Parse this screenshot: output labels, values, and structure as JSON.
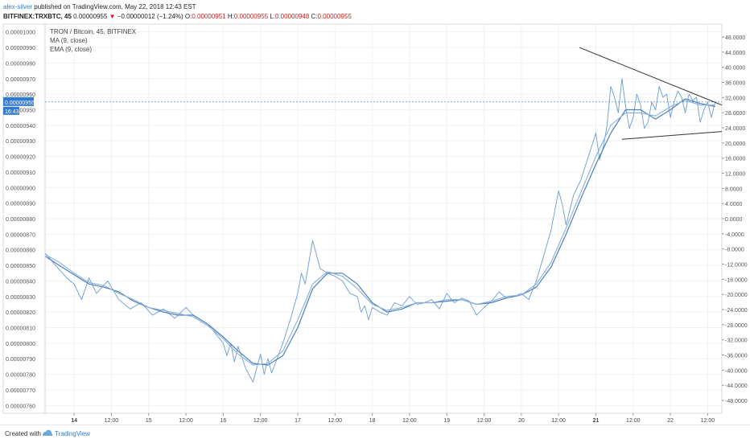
{
  "header": {
    "author": "alex-silver",
    "published_text": "published on TradingView.com, May 22, 2018 12:43 EST",
    "symbol": "BITFINEX:TRXBTC, 45",
    "last": "0.00000955",
    "change_arrow": "▼",
    "change": "−0.00000012 (−1.24%)",
    "o_label": "O:",
    "o_value": "0.00000951",
    "h_label": "H:",
    "h_value": "0.00000955",
    "l_label": "L:",
    "l_value": "0.00000948",
    "c_label": "C:",
    "c_value": "0.00000955"
  },
  "legend": {
    "title": "TRON / Bitcoin, 45, BITFINEX",
    "ma": "MA (9, close)",
    "ema": "EMA (9, close)"
  },
  "price_tag": {
    "value": "0.00000955",
    "time": "16:43"
  },
  "footer": {
    "created_with": "Created with",
    "brand": "TradingView"
  },
  "colors": {
    "price": "#6b9bd1",
    "ma": "#4c7fb8",
    "ema": "#87b0dc",
    "trendline": "#333333",
    "tag": "#2e7bcf",
    "grid": "#eef1f6"
  },
  "chart_data": {
    "type": "line",
    "left_axis": {
      "ylim": [
        7.55e-06,
        1.005e-05
      ],
      "ticks": [
        "0.00001000",
        "0.00000990",
        "0.00000980",
        "0.00000970",
        "0.00000960",
        "0.00000950",
        "0.00000940",
        "0.00000930",
        "0.00000920",
        "0.00000910",
        "0.00000900",
        "0.00000890",
        "0.00000880",
        "0.00000870",
        "0.00000860",
        "0.00000850",
        "0.00000840",
        "0.00000830",
        "0.00000820",
        "0.00000810",
        "0.00000800",
        "0.00000790",
        "0.00000780",
        "0.00000770",
        "0.00000760"
      ]
    },
    "right_axis": {
      "ylim": [
        -51.4,
        51.4
      ],
      "ticks": [
        "48.0000",
        "44.0000",
        "40.0000",
        "36.0000",
        "32.0000",
        "28.0000",
        "24.0000",
        "20.0000",
        "16.0000",
        "12.0000",
        "8.0000",
        "4.0000",
        "0.0000",
        "-4.0000",
        "-8.0000",
        "-12.0000",
        "-16.0000",
        "-20.0000",
        "-24.0000",
        "-28.0000",
        "-32.0000",
        "-36.0000",
        "-40.0000",
        "-44.0000",
        "-48.0000"
      ]
    },
    "xlim": [
      13.61,
      22.69
    ],
    "x_ticks": [
      {
        "x": 14,
        "label": "14",
        "bold": true
      },
      {
        "x": 14.5,
        "label": "12:00",
        "bold": false
      },
      {
        "x": 15,
        "label": "15",
        "bold": false
      },
      {
        "x": 15.5,
        "label": "12:00",
        "bold": false
      },
      {
        "x": 16,
        "label": "16",
        "bold": false
      },
      {
        "x": 16.5,
        "label": "12:00",
        "bold": false
      },
      {
        "x": 17,
        "label": "17",
        "bold": false
      },
      {
        "x": 17.5,
        "label": "12:00",
        "bold": false
      },
      {
        "x": 18,
        "label": "18",
        "bold": false
      },
      {
        "x": 18.5,
        "label": "12:00",
        "bold": false
      },
      {
        "x": 19,
        "label": "19",
        "bold": false
      },
      {
        "x": 19.5,
        "label": "12:00",
        "bold": false
      },
      {
        "x": 20,
        "label": "20",
        "bold": false
      },
      {
        "x": 20.5,
        "label": "12:00",
        "bold": false
      },
      {
        "x": 21,
        "label": "21",
        "bold": true
      },
      {
        "x": 21.5,
        "label": "12:00",
        "bold": false
      },
      {
        "x": 22,
        "label": "22",
        "bold": false
      },
      {
        "x": 22.5,
        "label": "12:00",
        "bold": false
      }
    ],
    "current_price": 9.55e-06,
    "series": [
      {
        "name": "TRXBTC",
        "x": [
          13.61,
          13.75,
          13.9,
          14.0,
          14.1,
          14.2,
          14.3,
          14.45,
          14.6,
          14.75,
          14.9,
          15.05,
          15.2,
          15.35,
          15.5,
          15.6,
          15.7,
          15.8,
          15.9,
          16.0,
          16.05,
          16.1,
          16.15,
          16.2,
          16.3,
          16.4,
          16.5,
          16.55,
          16.6,
          16.65,
          16.7,
          16.8,
          16.9,
          17.0,
          17.05,
          17.1,
          17.2,
          17.3,
          17.4,
          17.5,
          17.6,
          17.7,
          17.8,
          17.85,
          17.9,
          17.95,
          18.0,
          18.1,
          18.2,
          18.3,
          18.4,
          18.5,
          18.6,
          18.7,
          18.8,
          18.9,
          19.0,
          19.1,
          19.2,
          19.3,
          19.4,
          19.5,
          19.6,
          19.7,
          19.8,
          19.9,
          20.0,
          20.1,
          20.2,
          20.3,
          20.4,
          20.5,
          20.55,
          20.6,
          20.7,
          20.8,
          20.9,
          21.0,
          21.05,
          21.1,
          21.15,
          21.2,
          21.25,
          21.3,
          21.35,
          21.4,
          21.45,
          21.5,
          21.55,
          21.6,
          21.65,
          21.7,
          21.75,
          21.8,
          21.85,
          21.9,
          21.95,
          22.0,
          22.05,
          22.1,
          22.15,
          22.2,
          22.25,
          22.3,
          22.35,
          22.4,
          22.45,
          22.5,
          22.55,
          22.6
        ],
        "y": [
          8.58e-06,
          8.5e-06,
          8.42e-06,
          8.38e-06,
          8.28e-06,
          8.42e-06,
          8.32e-06,
          8.4e-06,
          8.28e-06,
          8.22e-06,
          8.26e-06,
          8.18e-06,
          8.22e-06,
          8.16e-06,
          8.23e-06,
          8.18e-06,
          8.15e-06,
          8.12e-06,
          8.06e-06,
          8e-06,
          7.92e-06,
          8e-06,
          7.88e-06,
          7.98e-06,
          7.84e-06,
          7.75e-06,
          7.93e-06,
          7.8e-06,
          7.9e-06,
          7.81e-06,
          7.87e-06,
          8e-06,
          8.15e-06,
          8.32e-06,
          8.45e-06,
          8.38e-06,
          8.66e-06,
          8.48e-06,
          8.45e-06,
          8.43e-06,
          8.4e-06,
          8.32e-06,
          8.3e-06,
          8.2e-06,
          8.24e-06,
          8.15e-06,
          8.23e-06,
          8.2e-06,
          8.18e-06,
          8.26e-06,
          8.24e-06,
          8.3e-06,
          8.25e-06,
          8.26e-06,
          8.28e-06,
          8.22e-06,
          8.32e-06,
          8.26e-06,
          8.29e-06,
          8.27e-06,
          8.18e-06,
          8.23e-06,
          8.27e-06,
          8.33e-06,
          8.29e-06,
          8.3e-06,
          8.32e-06,
          8.28e-06,
          8.4e-06,
          8.56e-06,
          8.73e-06,
          8.98e-06,
          8.89e-06,
          8.76e-06,
          8.95e-06,
          9.05e-06,
          9.2e-06,
          9.35e-06,
          9.18e-06,
          9.26e-06,
          9.4e-06,
          9.65e-06,
          9.58e-06,
          9.48e-06,
          9.7e-06,
          9.52e-06,
          9.38e-06,
          9.45e-06,
          9.6e-06,
          9.53e-06,
          9.38e-06,
          9.42e-06,
          9.55e-06,
          9.5e-06,
          9.65e-06,
          9.58e-06,
          9.6e-06,
          9.45e-06,
          9.55e-06,
          9.62e-06,
          9.58e-06,
          9.48e-06,
          9.6e-06,
          9.56e-06,
          9.58e-06,
          9.42e-06,
          9.5e-06,
          9.55e-06,
          9.45e-06,
          9.55e-06
        ]
      },
      {
        "name": "MA (9, close)",
        "x": [
          13.61,
          13.8,
          14.0,
          14.2,
          14.4,
          14.6,
          14.8,
          15.0,
          15.2,
          15.4,
          15.6,
          15.8,
          16.0,
          16.2,
          16.4,
          16.6,
          16.8,
          17.0,
          17.2,
          17.4,
          17.6,
          17.8,
          18.0,
          18.2,
          18.4,
          18.6,
          18.8,
          19.0,
          19.2,
          19.4,
          19.6,
          19.8,
          20.0,
          20.2,
          20.4,
          20.6,
          20.8,
          21.0,
          21.2,
          21.4,
          21.6,
          21.8,
          22.0,
          22.2,
          22.4,
          22.6
        ],
        "y": [
          8.56e-06,
          8.5e-06,
          8.44e-06,
          8.38e-06,
          8.36e-06,
          8.33e-06,
          8.27e-06,
          8.23e-06,
          8.2e-06,
          8.18e-06,
          8.18e-06,
          8.12e-06,
          8.04e-06,
          7.95e-06,
          7.87e-06,
          7.86e-06,
          7.92e-06,
          8.1e-06,
          8.35e-06,
          8.45e-06,
          8.45e-06,
          8.38e-06,
          8.26e-06,
          8.2e-06,
          8.22e-06,
          8.26e-06,
          8.26e-06,
          8.27e-06,
          8.28e-06,
          8.25e-06,
          8.26e-06,
          8.29e-06,
          8.31e-06,
          8.36e-06,
          8.49e-06,
          8.7e-06,
          8.93e-06,
          9.15e-06,
          9.35e-06,
          9.5e-06,
          9.5e-06,
          9.44e-06,
          9.5e-06,
          9.57e-06,
          9.54e-06,
          9.52e-06
        ]
      },
      {
        "name": "EMA (9, close)",
        "x": [
          13.61,
          13.8,
          14.0,
          14.2,
          14.4,
          14.6,
          14.8,
          15.0,
          15.2,
          15.4,
          15.6,
          15.8,
          16.0,
          16.2,
          16.4,
          16.6,
          16.8,
          17.0,
          17.2,
          17.4,
          17.6,
          17.8,
          18.0,
          18.2,
          18.4,
          18.6,
          18.8,
          19.0,
          19.2,
          19.4,
          19.6,
          19.8,
          20.0,
          20.2,
          20.4,
          20.6,
          20.8,
          21.0,
          21.2,
          21.4,
          21.6,
          21.8,
          22.0,
          22.2,
          22.4,
          22.6
        ],
        "y": [
          8.57e-06,
          8.52e-06,
          8.45e-06,
          8.39e-06,
          8.37e-06,
          8.32e-06,
          8.28e-06,
          8.23e-06,
          8.21e-06,
          8.19e-06,
          8.17e-06,
          8.11e-06,
          8.03e-06,
          7.93e-06,
          7.86e-06,
          7.87e-06,
          7.95e-06,
          8.15e-06,
          8.38e-06,
          8.46e-06,
          8.43e-06,
          8.35e-06,
          8.25e-06,
          8.21e-06,
          8.23e-06,
          8.26e-06,
          8.26e-06,
          8.28e-06,
          8.28e-06,
          8.25e-06,
          8.27e-06,
          8.3e-06,
          8.31e-06,
          8.38e-06,
          8.52e-06,
          8.74e-06,
          8.97e-06,
          9.2e-06,
          9.4e-06,
          9.48e-06,
          9.48e-06,
          9.46e-06,
          9.52e-06,
          9.56e-06,
          9.53e-06,
          9.53e-06
        ]
      }
    ],
    "trendlines": [
      {
        "x1": 20.78,
        "y1": 9.9e-06,
        "x2": 22.69,
        "y2": 9.53e-06
      },
      {
        "x1": 21.35,
        "y1": 9.31e-06,
        "x2": 22.69,
        "y2": 9.36e-06
      }
    ],
    "grid": true
  }
}
